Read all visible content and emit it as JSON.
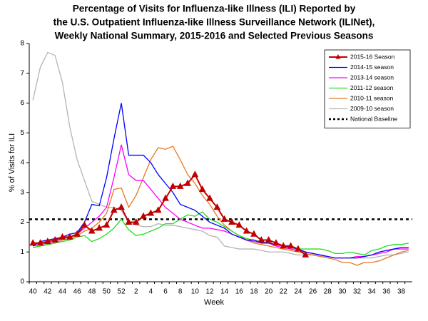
{
  "chart_data": {
    "type": "line",
    "title": [
      "Percentage of Visits for Influenza-like Illness (ILI) Reported by",
      "the U.S. Outpatient Influenza-like Illness Surveillance Network (ILINet),",
      "Weekly National Summary, 2015-2016 and Selected Previous Seasons"
    ],
    "x_label": "Week",
    "y_label": "% of Visits for ILI",
    "categories": [
      "40",
      null,
      "42",
      null,
      "44",
      null,
      "46",
      null,
      "48",
      null,
      "50",
      null,
      "52",
      null,
      "2",
      null,
      "4",
      null,
      "6",
      null,
      "8",
      null,
      "10",
      null,
      "12",
      null,
      "14",
      null,
      "16",
      null,
      "18",
      null,
      "20",
      null,
      "22",
      null,
      "24",
      null,
      "26",
      null,
      "28",
      null,
      "30",
      null,
      "32",
      null,
      "34",
      null,
      "36",
      null,
      "38",
      null
    ],
    "ylim": [
      0,
      8
    ],
    "yticks": [
      0,
      1,
      2,
      3,
      4,
      5,
      6,
      7,
      8
    ],
    "legend_position": "upper right",
    "series": [
      {
        "name": "2015-16 Season",
        "color": "#c00000",
        "marker": "triangle",
        "values": [
          1.3,
          1.3,
          1.35,
          1.4,
          1.5,
          1.5,
          1.6,
          1.9,
          1.7,
          1.8,
          1.9,
          2.4,
          2.5,
          2.0,
          2.0,
          2.2,
          2.3,
          2.4,
          2.8,
          3.2,
          3.2,
          3.3,
          3.6,
          3.1,
          2.8,
          2.5,
          2.1,
          2.0,
          1.9,
          1.7,
          1.6,
          1.4,
          1.4,
          1.3,
          1.2,
          1.2,
          1.1,
          0.9,
          null,
          null,
          null,
          null,
          null,
          null,
          null,
          null,
          null,
          null,
          null,
          null,
          null,
          null
        ]
      },
      {
        "name": "2014-15 season",
        "color": "#0000ff",
        "values": [
          1.2,
          1.35,
          1.4,
          1.45,
          1.5,
          1.6,
          1.65,
          2.0,
          2.6,
          2.55,
          3.5,
          4.8,
          6.0,
          4.25,
          4.25,
          4.25,
          4.0,
          3.6,
          3.3,
          3.0,
          2.6,
          2.5,
          2.4,
          2.2,
          2.0,
          1.9,
          1.8,
          1.6,
          1.5,
          1.4,
          1.4,
          1.3,
          1.3,
          1.25,
          1.2,
          1.15,
          1.1,
          1.0,
          0.95,
          0.9,
          0.85,
          0.8,
          0.8,
          0.8,
          0.8,
          0.85,
          0.9,
          1.0,
          1.05,
          1.1,
          1.15,
          1.15
        ]
      },
      {
        "name": "2013-14 season",
        "color": "#ff00ff",
        "values": [
          1.2,
          1.25,
          1.3,
          1.35,
          1.45,
          1.5,
          1.6,
          1.8,
          2.0,
          2.2,
          2.5,
          3.5,
          4.6,
          3.6,
          3.4,
          3.4,
          3.1,
          2.8,
          2.5,
          2.3,
          2.1,
          2.0,
          1.9,
          1.8,
          1.8,
          1.75,
          1.7,
          1.6,
          1.5,
          1.4,
          1.35,
          1.3,
          1.3,
          1.2,
          1.15,
          1.1,
          1.05,
          1.0,
          0.95,
          0.9,
          0.85,
          0.8,
          0.8,
          0.8,
          0.85,
          0.85,
          0.9,
          0.95,
          1.0,
          1.1,
          1.1,
          1.1
        ]
      },
      {
        "name": "2011-12 season",
        "color": "#22dd22",
        "values": [
          1.15,
          1.2,
          1.25,
          1.3,
          1.35,
          1.4,
          1.5,
          1.55,
          1.35,
          1.45,
          1.6,
          1.8,
          2.1,
          1.75,
          1.55,
          1.6,
          1.7,
          1.8,
          1.95,
          1.95,
          2.1,
          2.25,
          2.2,
          2.35,
          2.1,
          2.0,
          1.85,
          1.7,
          1.55,
          1.45,
          1.4,
          1.35,
          1.3,
          1.25,
          1.2,
          1.15,
          1.1,
          1.1,
          1.1,
          1.1,
          1.05,
          0.95,
          0.95,
          1.0,
          0.95,
          0.9,
          1.05,
          1.1,
          1.2,
          1.25,
          1.25,
          1.3
        ]
      },
      {
        "name": "2010-11 season",
        "color": "#e87722",
        "values": [
          1.15,
          1.2,
          1.25,
          1.3,
          1.4,
          1.45,
          1.55,
          1.7,
          1.8,
          2.0,
          2.3,
          3.1,
          3.15,
          2.5,
          2.9,
          3.5,
          4.1,
          4.5,
          4.45,
          4.55,
          4.1,
          3.6,
          3.3,
          2.9,
          2.6,
          2.2,
          1.9,
          1.7,
          1.55,
          1.4,
          1.3,
          1.25,
          1.2,
          1.15,
          1.1,
          1.05,
          1.0,
          0.95,
          0.9,
          0.85,
          0.8,
          0.75,
          0.65,
          0.65,
          0.55,
          0.65,
          0.65,
          0.7,
          0.8,
          0.9,
          1.0,
          1.05
        ]
      },
      {
        "name": "2009-10 season",
        "color": "#b4b4b4",
        "values": [
          6.1,
          7.2,
          7.7,
          7.6,
          6.7,
          5.2,
          4.1,
          3.4,
          2.7,
          2.6,
          2.5,
          2.5,
          2.4,
          2.0,
          1.9,
          1.85,
          1.85,
          1.95,
          1.9,
          1.9,
          1.85,
          1.8,
          1.75,
          1.7,
          1.55,
          1.5,
          1.2,
          1.15,
          1.1,
          1.1,
          1.1,
          1.05,
          1.0,
          1.0,
          1.0,
          0.95,
          0.9,
          0.9,
          0.9,
          0.85,
          0.85,
          0.8,
          0.8,
          0.8,
          0.8,
          0.8,
          0.8,
          0.85,
          0.9,
          0.9,
          0.95,
          1.0
        ]
      }
    ],
    "baseline": {
      "name": "National Baseline",
      "value": 2.1,
      "color": "#000000"
    }
  }
}
